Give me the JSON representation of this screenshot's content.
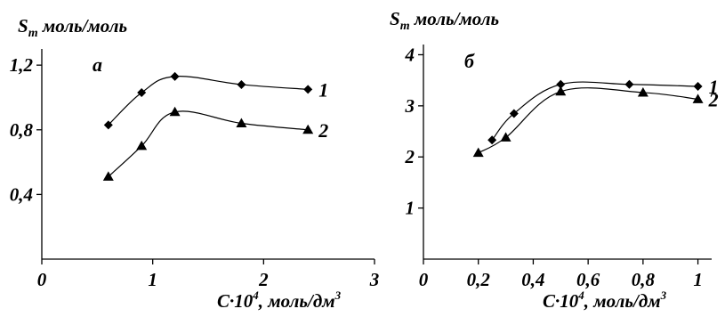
{
  "chart_data": [
    {
      "type": "line",
      "panel": "a",
      "ylabel": {
        "main": "S",
        "sub": "m",
        "units": " моль/моль"
      },
      "xlabel": {
        "main": "C·10",
        "sup": "4",
        "units": ", моль/дм",
        "units_sup": "3"
      },
      "xlim": [
        0,
        3
      ],
      "ylim": [
        0,
        1.3
      ],
      "xticks": [
        {
          "v": 0,
          "label": "0"
        },
        {
          "v": 1,
          "label": "1"
        },
        {
          "v": 2,
          "label": "2"
        },
        {
          "v": 3,
          "label": "3"
        }
      ],
      "yticks": [
        {
          "v": 0.4,
          "label": "0,4"
        },
        {
          "v": 0.8,
          "label": "0,8"
        },
        {
          "v": 1.2,
          "label": "1,2"
        }
      ],
      "grid": false,
      "series": [
        {
          "name": "1",
          "marker": "diamond",
          "x": [
            0.6,
            0.9,
            1.2,
            1.8,
            2.4
          ],
          "y": [
            0.83,
            1.03,
            1.13,
            1.08,
            1.05
          ]
        },
        {
          "name": "2",
          "marker": "triangle",
          "x": [
            0.6,
            0.9,
            1.2,
            1.8,
            2.4
          ],
          "y": [
            0.51,
            0.7,
            0.91,
            0.84,
            0.8
          ]
        }
      ]
    },
    {
      "type": "line",
      "panel": "б",
      "ylabel": {
        "main": "S",
        "sub": "m",
        "units": " моль/моль"
      },
      "xlabel": {
        "main": "C·10",
        "sup": "4",
        "units": ", моль/дм",
        "units_sup": "3"
      },
      "xlim": [
        0,
        1.05
      ],
      "ylim": [
        0,
        4.2
      ],
      "xticks": [
        {
          "v": 0,
          "label": "0"
        },
        {
          "v": 0.2,
          "label": "0,2"
        },
        {
          "v": 0.4,
          "label": "0,4"
        },
        {
          "v": 0.6,
          "label": "0,6"
        },
        {
          "v": 0.8,
          "label": "0,8"
        },
        {
          "v": 1.0,
          "label": "1"
        }
      ],
      "yticks": [
        {
          "v": 1,
          "label": "1"
        },
        {
          "v": 2,
          "label": "2"
        },
        {
          "v": 3,
          "label": "3"
        },
        {
          "v": 4,
          "label": "4"
        }
      ],
      "grid": false,
      "series": [
        {
          "name": "1",
          "marker": "diamond",
          "x": [
            0.25,
            0.33,
            0.5,
            0.75,
            1.0
          ],
          "y": [
            2.33,
            2.85,
            3.42,
            3.42,
            3.38
          ]
        },
        {
          "name": "2",
          "marker": "triangle",
          "x": [
            0.2,
            0.3,
            0.5,
            0.8,
            1.0
          ],
          "y": [
            2.08,
            2.38,
            3.28,
            3.26,
            3.13
          ]
        }
      ]
    }
  ]
}
